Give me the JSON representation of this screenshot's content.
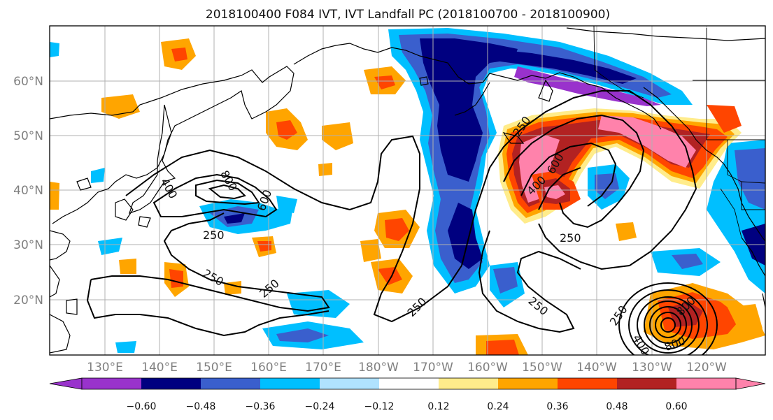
{
  "title": "2018100400 F084 IVT, IVT Landfall PC (2018100700 - 2018100900)",
  "latitude_labels": [
    "60°N",
    "50°N",
    "40°N",
    "30°N",
    "20°N"
  ],
  "longitude_labels": [
    "130°E",
    "140°E",
    "150°E",
    "160°E",
    "170°E",
    "180°W",
    "170°W",
    "160°W",
    "150°W",
    "140°W",
    "130°W",
    "120°W"
  ],
  "contour_labels": [
    "250",
    "400",
    "600",
    "800"
  ],
  "colorbar": {
    "tick_labels": [
      "−0.60",
      "−0.48",
      "−0.36",
      "−0.24",
      "−0.12",
      "0.12",
      "0.24",
      "0.36",
      "0.48",
      "0.60"
    ],
    "bins": [
      {
        "range": "< -0.60",
        "color": "#9932cc"
      },
      {
        "range": "-0.60 to -0.48",
        "color": "#000080"
      },
      {
        "range": "-0.48 to -0.36",
        "color": "#3a5fcd"
      },
      {
        "range": "-0.36 to -0.24",
        "color": "#00bfff"
      },
      {
        "range": "-0.24 to -0.12",
        "color": "#b0e2ff"
      },
      {
        "range": "-0.12 to 0.12",
        "color": "#ffffff"
      },
      {
        "range": "0.12 to 0.24",
        "color": "#ffec8b"
      },
      {
        "range": "0.24 to 0.36",
        "color": "#ffa500"
      },
      {
        "range": "0.36 to 0.48",
        "color": "#ff4500"
      },
      {
        "range": "0.48 to 0.60",
        "color": "#b22222"
      },
      {
        "range": "> 0.60",
        "color": "#ff82ab"
      }
    ]
  }
}
